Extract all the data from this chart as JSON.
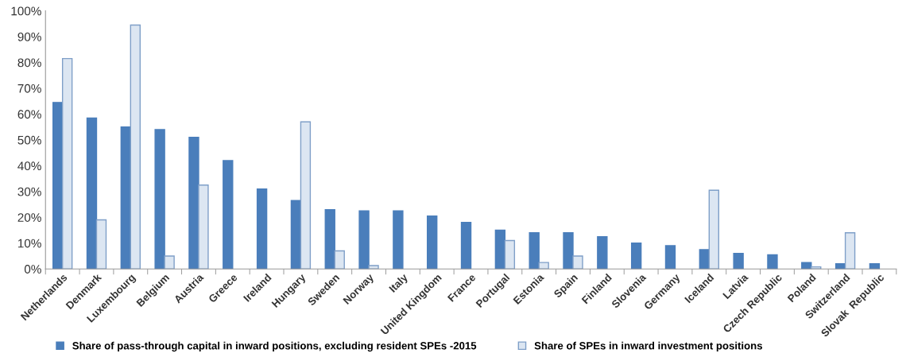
{
  "chart_data": {
    "type": "bar",
    "categories": [
      "Netherlands",
      "Denmark",
      "Luxembourg",
      "Belgium",
      "Austria",
      "Greece",
      "Ireland",
      "Hungary",
      "Sweden",
      "Norway",
      "Italy",
      "United Kingdom",
      "France",
      "Portugal",
      "Estonia",
      "Spain",
      "Finland",
      "Slovenia",
      "Germany",
      "Iceland",
      "Latvia",
      "Czech Republic",
      "Poland",
      "Switzerland",
      "Slovak  Republic"
    ],
    "series": [
      {
        "name": "Share of pass-through capital in inward positions, excluding resident SPEs -2015",
        "color": "#4a7ebb",
        "values": [
          64.5,
          58.5,
          55,
          54,
          51,
          42,
          31,
          26.5,
          23,
          22.5,
          22.5,
          20.5,
          18,
          15,
          14,
          14,
          12.5,
          10,
          9,
          7.5,
          6,
          5.5,
          2.5,
          2,
          2
        ]
      },
      {
        "name": "Share of SPEs in inward investment positions",
        "color": "#dce6f2",
        "values": [
          81.5,
          19,
          94.5,
          5,
          32.5,
          null,
          null,
          57,
          7,
          1.3,
          null,
          null,
          null,
          11,
          2.5,
          5,
          null,
          null,
          null,
          30.5,
          null,
          null,
          0.8,
          14,
          null
        ]
      }
    ],
    "ylim": [
      0,
      100
    ],
    "yticks": [
      {
        "value": 0,
        "label": "0%"
      },
      {
        "value": 10,
        "label": "10%"
      },
      {
        "value": 20,
        "label": "20%"
      },
      {
        "value": 30,
        "label": "30%"
      },
      {
        "value": 40,
        "label": "40%"
      },
      {
        "value": 50,
        "label": "50%"
      },
      {
        "value": 60,
        "label": "60%"
      },
      {
        "value": 70,
        "label": "70%"
      },
      {
        "value": 80,
        "label": "80%"
      },
      {
        "value": 90,
        "label": "90%"
      },
      {
        "value": 100,
        "label": "100%"
      }
    ],
    "grid": false,
    "legend": "bottom"
  }
}
